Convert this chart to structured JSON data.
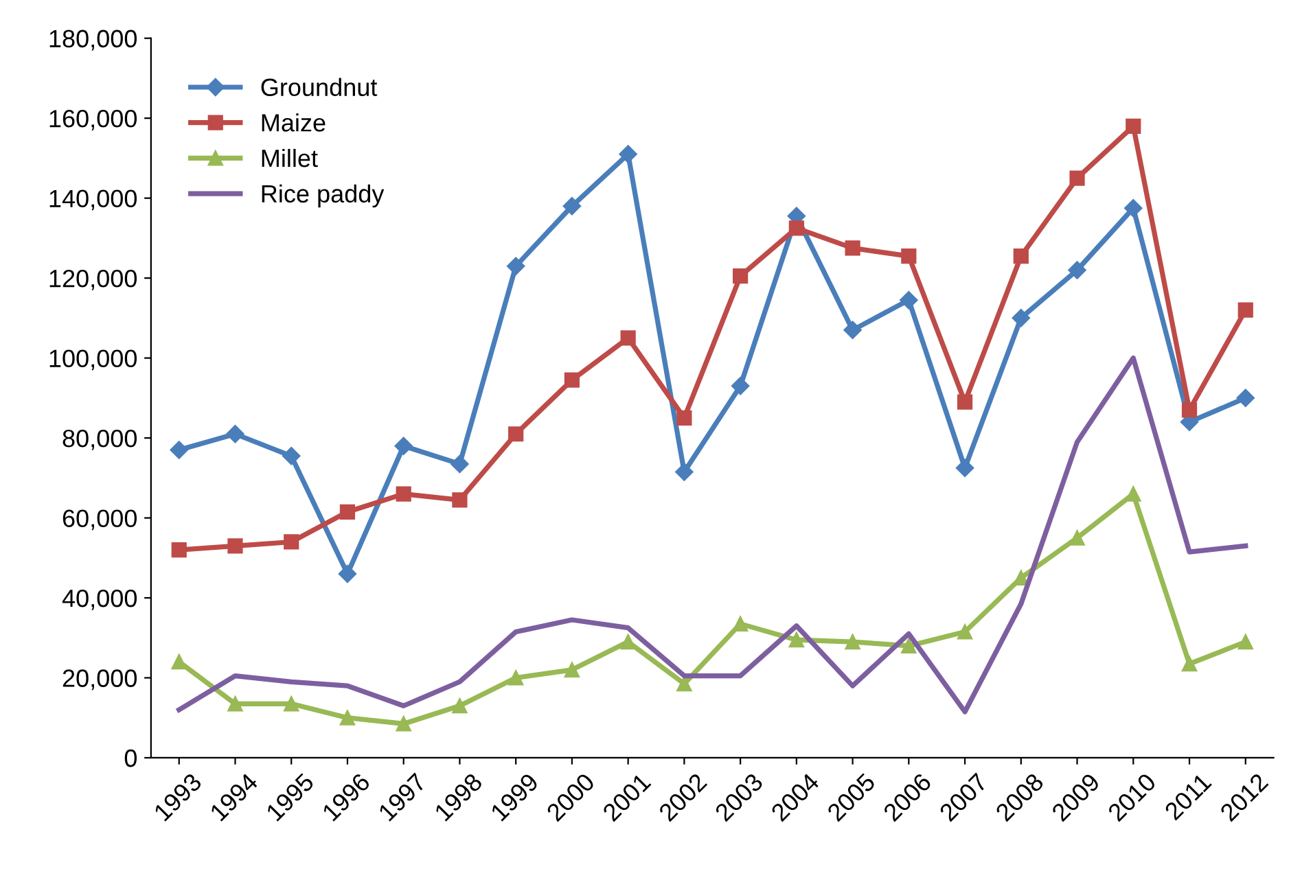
{
  "chart_data": {
    "type": "line",
    "categories": [
      "1993",
      "1994",
      "1995",
      "1996",
      "1997",
      "1998",
      "1999",
      "2000",
      "2001",
      "2002",
      "2003",
      "2004",
      "2005",
      "2006",
      "2007",
      "2008",
      "2009",
      "2010",
      "2011",
      "2012"
    ],
    "series": [
      {
        "name": "Groundnut",
        "color": "#4a7ebb",
        "marker": "diamond",
        "values": [
          77000,
          81000,
          75500,
          46000,
          78000,
          73500,
          123000,
          138000,
          151000,
          71500,
          93000,
          135500,
          107000,
          114500,
          72500,
          110000,
          122000,
          137500,
          84000,
          90000
        ]
      },
      {
        "name": "Maize",
        "color": "#be4b48",
        "marker": "square",
        "values": [
          52000,
          53000,
          54000,
          61500,
          66000,
          64500,
          81000,
          94500,
          105000,
          85000,
          120500,
          132500,
          127500,
          125500,
          89000,
          125500,
          145000,
          158000,
          87000,
          112000
        ]
      },
      {
        "name": "Millet",
        "color": "#98b954",
        "marker": "triangle",
        "values": [
          24000,
          13500,
          13500,
          10000,
          8500,
          13000,
          20000,
          22000,
          29000,
          18500,
          33500,
          29500,
          29000,
          28000,
          31500,
          45000,
          55000,
          66000,
          23500,
          29000
        ]
      },
      {
        "name": "Rice paddy",
        "color": "#7d5fa0",
        "marker": "none",
        "values": [
          12000,
          20500,
          19000,
          18000,
          13000,
          19000,
          31500,
          34500,
          32500,
          20500,
          20500,
          33000,
          18000,
          31000,
          11500,
          38500,
          79000,
          100000,
          51500,
          53000
        ]
      }
    ],
    "ylim": [
      0,
      180000
    ],
    "yticks": [
      {
        "value": 0,
        "label": "0"
      },
      {
        "value": 20000,
        "label": "20,000"
      },
      {
        "value": 40000,
        "label": "40,000"
      },
      {
        "value": 60000,
        "label": "60,000"
      },
      {
        "value": 80000,
        "label": "80,000"
      },
      {
        "value": 100000,
        "label": "100,000"
      },
      {
        "value": 120000,
        "label": "120,000"
      },
      {
        "value": 140000,
        "label": "140,000"
      },
      {
        "value": 160000,
        "label": "160,000"
      },
      {
        "value": 180000,
        "label": "180,000"
      }
    ],
    "grid": false,
    "legend": "top left",
    "line_style": "solid"
  }
}
